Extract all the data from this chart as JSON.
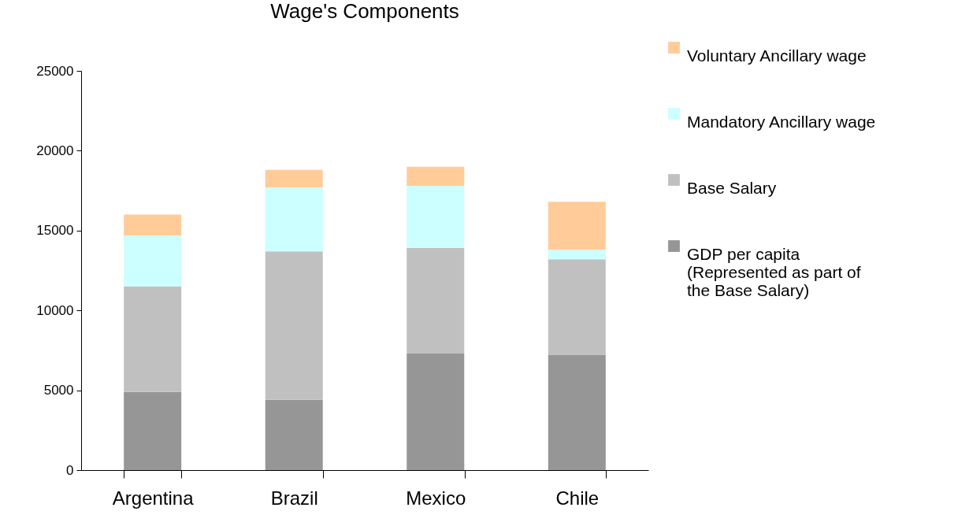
{
  "chart_data": {
    "type": "bar",
    "title": "Wage's Components",
    "stacked": true,
    "categories": [
      "Argentina",
      "Brazil",
      "Mexico",
      "Chile"
    ],
    "series": [
      {
        "name": "GDP per capita (Represented as part of the Base Salary)",
        "color": "#969696",
        "values": [
          4900,
          4400,
          7300,
          7200
        ]
      },
      {
        "name": "Base Salary",
        "color": "#c0c0c0",
        "values": [
          6600,
          9300,
          6600,
          6000
        ]
      },
      {
        "name": "Mandatory Ancillary wage",
        "color": "#ccffff",
        "values": [
          3200,
          4000,
          3900,
          600
        ]
      },
      {
        "name": "Voluntary Ancillary wage",
        "color": "#ffcc99",
        "values": [
          1300,
          1100,
          1200,
          3000
        ]
      }
    ],
    "ylim": [
      0,
      25000
    ],
    "yticks": [
      0,
      5000,
      10000,
      15000,
      20000,
      25000
    ],
    "grid": false,
    "legend": "right"
  }
}
